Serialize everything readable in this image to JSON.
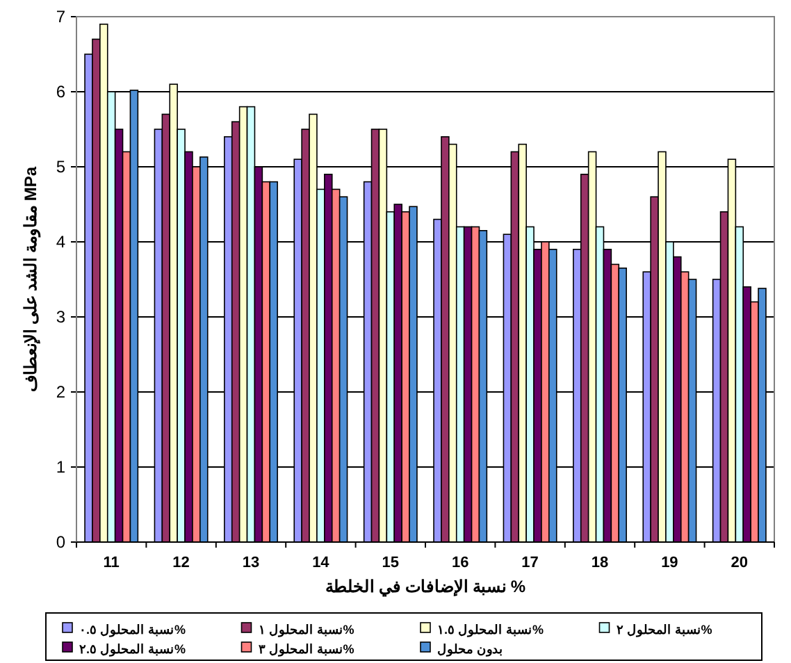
{
  "chart_data": {
    "type": "bar",
    "xlabel": "نسبة الإضافات في الخلطة %",
    "ylabel": "مقاومة الشد على الإنعطاف MPa",
    "categories": [
      "11",
      "12",
      "13",
      "14",
      "15",
      "16",
      "17",
      "18",
      "19",
      "20"
    ],
    "ylim": [
      0,
      7
    ],
    "yticks": [
      0,
      1,
      2,
      3,
      4,
      5,
      6,
      7
    ],
    "grid": "y",
    "legend": "bottom",
    "series": [
      {
        "name": "نسبة المحلول ٠.٥%",
        "color": "#9999ff",
        "values": [
          6.5,
          5.5,
          5.4,
          5.1,
          4.8,
          4.3,
          4.1,
          3.9,
          3.6,
          3.5
        ]
      },
      {
        "name": "نسبة المحلول ١%",
        "color": "#993366",
        "values": [
          6.7,
          5.7,
          5.6,
          5.5,
          5.5,
          5.4,
          5.2,
          4.9,
          4.6,
          4.4
        ]
      },
      {
        "name": "نسبة المحلول ١.٥%",
        "color": "#ffffcc",
        "values": [
          6.9,
          6.1,
          5.8,
          5.7,
          5.5,
          5.3,
          5.3,
          5.2,
          5.2,
          5.1
        ]
      },
      {
        "name": "نسبة المحلول ٢%",
        "color": "#ccffff",
        "values": [
          6.0,
          5.5,
          5.8,
          4.7,
          4.4,
          4.2,
          4.2,
          4.2,
          4.0,
          4.2
        ]
      },
      {
        "name": "نسبة المحلول ٢.٥%",
        "color": "#660066",
        "values": [
          5.5,
          5.2,
          5.0,
          4.9,
          4.5,
          4.2,
          3.9,
          3.9,
          3.8,
          3.4
        ]
      },
      {
        "name": "نسبة المحلول ٣%",
        "color": "#ff8080",
        "values": [
          5.2,
          5.0,
          4.8,
          4.7,
          4.4,
          4.2,
          4.0,
          3.7,
          3.6,
          3.2
        ]
      },
      {
        "name": "بدون محلول",
        "color": "#4d8fd6",
        "values": [
          6.02,
          5.13,
          4.8,
          4.6,
          4.47,
          4.15,
          3.9,
          3.65,
          3.5,
          3.38
        ]
      }
    ]
  }
}
